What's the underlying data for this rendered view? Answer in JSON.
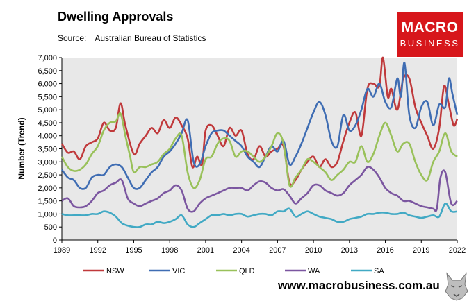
{
  "header": {
    "title": "Dwelling Approvals",
    "source_label": "Source:",
    "source_text": "Australian Bureau of Statistics"
  },
  "logo": {
    "line1": "MACRO",
    "line2": "BUSINESS",
    "color": "#d7161b"
  },
  "footer": {
    "url": "www.macrobusiness.com.au"
  },
  "chart_data": {
    "type": "line",
    "title": "Dwelling Approvals",
    "xlabel": "",
    "ylabel": "Number (Trend)",
    "xlim": [
      1989,
      2022
    ],
    "ylim": [
      0,
      7000
    ],
    "x_ticks": [
      1989,
      1992,
      1995,
      1998,
      2001,
      2004,
      2007,
      2010,
      2013,
      2016,
      2019,
      2022
    ],
    "y_ticks": [
      0,
      500,
      1000,
      1500,
      2000,
      2500,
      3000,
      3500,
      4000,
      4500,
      5000,
      5500,
      6000,
      6500,
      7000
    ],
    "y_tick_labels": [
      "0",
      "500",
      "1,000",
      "1,500",
      "2,000",
      "2,500",
      "3,000",
      "3,500",
      "4,000",
      "4,500",
      "5,000",
      "5,500",
      "6,000",
      "6,500",
      "7,000"
    ],
    "grid": false,
    "legend_position": "bottom",
    "series": [
      {
        "name": "NSW",
        "color": "#c0393b",
        "x": [
          1989.0,
          1989.5,
          1990.0,
          1990.5,
          1991.0,
          1991.5,
          1992.0,
          1992.5,
          1993.0,
          1993.5,
          1993.9,
          1994.3,
          1995.0,
          1995.5,
          1996.0,
          1996.5,
          1997.0,
          1997.5,
          1998.0,
          1998.5,
          1999.0,
          1999.5,
          1999.9,
          2000.3,
          2000.7,
          2001.0,
          2001.5,
          2002.0,
          2002.5,
          2003.0,
          2003.5,
          2004.0,
          2004.5,
          2005.0,
          2005.5,
          2006.0,
          2006.5,
          2007.0,
          2007.5,
          2008.0,
          2008.5,
          2009.0,
          2009.5,
          2010.0,
          2010.5,
          2011.0,
          2011.5,
          2012.0,
          2012.5,
          2013.0,
          2013.5,
          2014.0,
          2014.5,
          2015.0,
          2015.5,
          2015.8,
          2016.2,
          2016.5,
          2017.0,
          2017.5,
          2018.0,
          2018.5,
          2019.0,
          2019.5,
          2020.0,
          2020.5,
          2020.9,
          2021.3,
          2021.7,
          2022.0
        ],
        "values": [
          3700,
          3350,
          3400,
          3100,
          3600,
          3750,
          3900,
          4500,
          4200,
          4300,
          5250,
          4400,
          3300,
          3700,
          4000,
          4300,
          4100,
          4600,
          4300,
          4700,
          4400,
          3900,
          2800,
          3200,
          2900,
          4200,
          4400,
          4000,
          3600,
          4300,
          4000,
          4200,
          3300,
          3100,
          3600,
          3200,
          3400,
          3500,
          3600,
          2200,
          2300,
          2700,
          3000,
          3200,
          2800,
          3100,
          2800,
          3000,
          3800,
          4500,
          4900,
          4000,
          5800,
          6000,
          5900,
          7000,
          5500,
          5800,
          5000,
          6200,
          6200,
          5100,
          4500,
          4000,
          3500,
          4300,
          5900,
          5200,
          4400,
          4650
        ]
      },
      {
        "name": "VIC",
        "color": "#3f6db3",
        "x": [
          1989.0,
          1989.5,
          1990.0,
          1990.5,
          1991.0,
          1991.5,
          1992.0,
          1992.5,
          1993.0,
          1993.5,
          1994.0,
          1994.5,
          1995.0,
          1995.5,
          1996.0,
          1996.5,
          1997.0,
          1997.5,
          1998.0,
          1998.5,
          1999.0,
          1999.5,
          2000.0,
          2000.5,
          2001.0,
          2001.5,
          2002.0,
          2002.5,
          2003.0,
          2003.5,
          2004.0,
          2004.5,
          2005.0,
          2005.5,
          2006.0,
          2006.5,
          2007.0,
          2007.5,
          2008.0,
          2008.5,
          2009.0,
          2009.5,
          2010.0,
          2010.5,
          2011.0,
          2011.5,
          2012.0,
          2012.5,
          2013.0,
          2013.5,
          2014.0,
          2014.5,
          2015.0,
          2015.5,
          2016.0,
          2016.5,
          2017.0,
          2017.3,
          2017.6,
          2018.0,
          2018.5,
          2019.0,
          2019.5,
          2020.0,
          2020.5,
          2021.0,
          2021.3,
          2021.6,
          2022.0
        ],
        "values": [
          2700,
          2400,
          2300,
          2000,
          2000,
          2400,
          2500,
          2500,
          2800,
          2900,
          2800,
          2400,
          2000,
          2000,
          2300,
          2600,
          2800,
          3200,
          3400,
          3700,
          4100,
          4600,
          3000,
          2900,
          3600,
          4100,
          4200,
          4200,
          4000,
          3800,
          3600,
          3200,
          3000,
          2800,
          3200,
          3600,
          3400,
          3800,
          2900,
          3200,
          3700,
          4300,
          4900,
          5300,
          4800,
          3800,
          3600,
          4800,
          4200,
          4400,
          5000,
          5800,
          5500,
          6000,
          5300,
          5100,
          6200,
          5500,
          6800,
          4800,
          4300,
          5100,
          5300,
          4400,
          5200,
          5100,
          6200,
          5600,
          4800
        ]
      },
      {
        "name": "QLD",
        "color": "#99c15a",
        "x": [
          1989.0,
          1989.5,
          1990.0,
          1990.5,
          1991.0,
          1991.5,
          1992.0,
          1992.5,
          1993.0,
          1993.5,
          1993.9,
          1994.3,
          1994.7,
          1995.0,
          1995.5,
          1996.0,
          1996.5,
          1997.0,
          1997.5,
          1998.0,
          1998.5,
          1999.0,
          1999.5,
          2000.0,
          2000.5,
          2001.0,
          2001.5,
          2002.0,
          2002.5,
          2003.0,
          2003.5,
          2004.0,
          2004.5,
          2005.0,
          2005.5,
          2006.0,
          2006.5,
          2007.0,
          2007.5,
          2008.0,
          2008.5,
          2009.0,
          2009.5,
          2010.0,
          2010.5,
          2011.0,
          2011.5,
          2012.0,
          2012.5,
          2013.0,
          2013.5,
          2014.0,
          2014.5,
          2015.0,
          2015.5,
          2016.0,
          2016.5,
          2017.0,
          2017.5,
          2018.0,
          2018.5,
          2019.0,
          2019.5,
          2020.0,
          2020.5,
          2021.0,
          2021.5,
          2022.0
        ],
        "values": [
          3200,
          2800,
          2650,
          2700,
          2900,
          3300,
          3600,
          4200,
          4500,
          4550,
          4850,
          4000,
          3200,
          2600,
          2800,
          2800,
          2900,
          3000,
          3300,
          3500,
          3900,
          4000,
          2600,
          2000,
          2300,
          3100,
          3200,
          3700,
          3900,
          3800,
          3200,
          3400,
          3400,
          3200,
          3000,
          3200,
          3600,
          4100,
          3700,
          2100,
          2400,
          2700,
          3100,
          3000,
          2800,
          2600,
          2300,
          2500,
          2700,
          3000,
          3000,
          3600,
          3000,
          3300,
          4000,
          4500,
          4000,
          3400,
          3700,
          3700,
          3000,
          2500,
          2300,
          3000,
          3400,
          4100,
          3400,
          3200
        ]
      },
      {
        "name": "WA",
        "color": "#7b56a0",
        "x": [
          1989.0,
          1989.5,
          1990.0,
          1990.5,
          1991.0,
          1991.5,
          1992.0,
          1992.5,
          1993.0,
          1993.5,
          1994.0,
          1994.5,
          1995.0,
          1995.5,
          1996.0,
          1996.5,
          1997.0,
          1997.5,
          1998.0,
          1998.5,
          1999.0,
          1999.5,
          2000.0,
          2000.5,
          2001.0,
          2001.5,
          2002.0,
          2002.5,
          2003.0,
          2003.5,
          2004.0,
          2004.5,
          2005.0,
          2005.5,
          2006.0,
          2006.5,
          2007.0,
          2007.5,
          2008.0,
          2008.5,
          2009.0,
          2009.5,
          2010.0,
          2010.5,
          2011.0,
          2011.5,
          2012.0,
          2012.5,
          2013.0,
          2013.5,
          2014.0,
          2014.5,
          2015.0,
          2015.5,
          2016.0,
          2016.5,
          2017.0,
          2017.5,
          2018.0,
          2018.5,
          2019.0,
          2019.5,
          2020.0,
          2020.3,
          2020.6,
          2021.0,
          2021.5,
          2022.0
        ],
        "values": [
          1500,
          1600,
          1300,
          1250,
          1300,
          1500,
          1800,
          1900,
          2100,
          2200,
          2300,
          1600,
          1400,
          1300,
          1400,
          1500,
          1600,
          1800,
          1900,
          2100,
          1900,
          1200,
          1100,
          1400,
          1600,
          1700,
          1800,
          1900,
          2000,
          2000,
          2000,
          1900,
          2100,
          2250,
          2200,
          2000,
          1900,
          1950,
          1700,
          1400,
          1600,
          1800,
          2100,
          2100,
          1900,
          1800,
          1700,
          1800,
          2100,
          2300,
          2500,
          2800,
          2700,
          2400,
          2000,
          1800,
          1700,
          1500,
          1500,
          1400,
          1300,
          1250,
          1200,
          1200,
          2400,
          2600,
          1400,
          1500
        ]
      },
      {
        "name": "SA",
        "color": "#41a9c4",
        "x": [
          1989.0,
          1989.5,
          1990.0,
          1990.5,
          1991.0,
          1991.5,
          1992.0,
          1992.5,
          1993.0,
          1993.5,
          1994.0,
          1994.5,
          1995.0,
          1995.5,
          1996.0,
          1996.5,
          1997.0,
          1997.5,
          1998.0,
          1998.5,
          1999.0,
          1999.5,
          2000.0,
          2000.5,
          2001.0,
          2001.5,
          2002.0,
          2002.5,
          2003.0,
          2003.5,
          2004.0,
          2004.5,
          2005.0,
          2005.5,
          2006.0,
          2006.5,
          2007.0,
          2007.5,
          2008.0,
          2008.5,
          2009.0,
          2009.5,
          2010.0,
          2010.5,
          2011.0,
          2011.5,
          2012.0,
          2012.5,
          2013.0,
          2013.5,
          2014.0,
          2014.5,
          2015.0,
          2015.5,
          2016.0,
          2016.5,
          2017.0,
          2017.5,
          2018.0,
          2018.5,
          2019.0,
          2019.5,
          2020.0,
          2020.5,
          2021.0,
          2021.5,
          2022.0
        ],
        "values": [
          1000,
          950,
          950,
          950,
          950,
          1000,
          1000,
          1100,
          1050,
          900,
          650,
          550,
          500,
          500,
          600,
          600,
          700,
          650,
          700,
          800,
          950,
          600,
          500,
          650,
          800,
          950,
          950,
          1000,
          950,
          1000,
          1000,
          900,
          950,
          1000,
          1000,
          950,
          1100,
          1100,
          1200,
          900,
          1000,
          1100,
          1000,
          900,
          850,
          800,
          700,
          700,
          800,
          850,
          900,
          1000,
          1000,
          1050,
          1050,
          1000,
          1000,
          1050,
          950,
          900,
          850,
          900,
          950,
          900,
          1400,
          1100,
          1100
        ]
      }
    ]
  }
}
